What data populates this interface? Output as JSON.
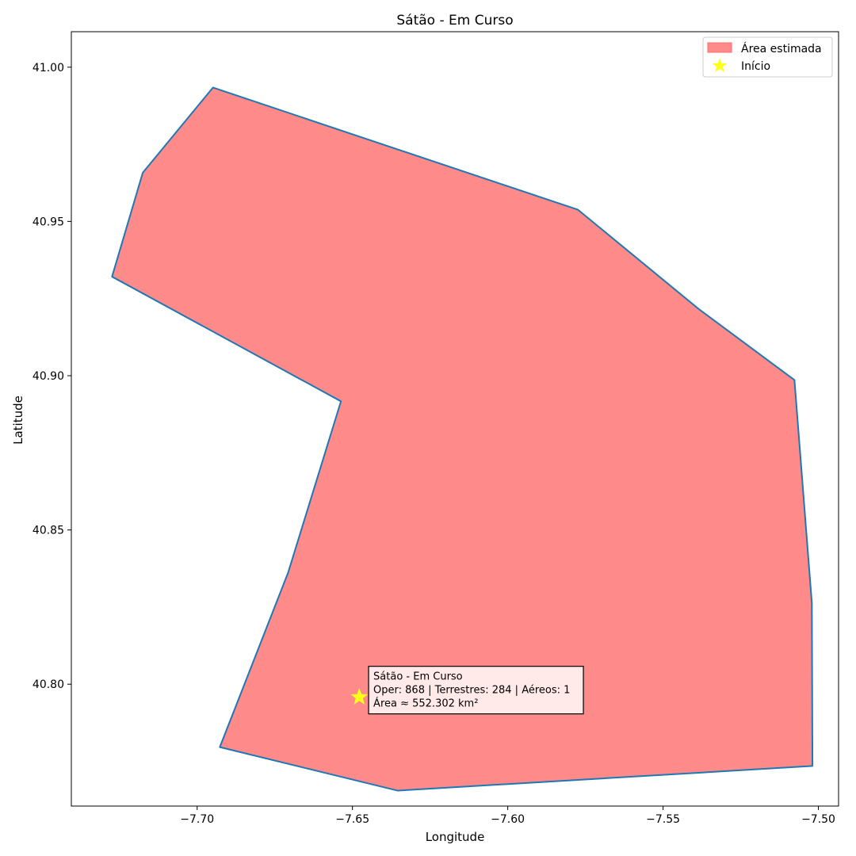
{
  "chart_data": {
    "type": "area",
    "title": "Sátão - Em Curso",
    "xlabel": "Longitude",
    "ylabel": "Latitude",
    "xlim": [
      -7.7405,
      -7.4935
    ],
    "ylim": [
      40.7605,
      41.0115
    ],
    "xticks": [
      -7.7,
      -7.65,
      -7.6,
      -7.55,
      -7.5
    ],
    "xtick_labels": [
      "−7.70",
      "−7.65",
      "−7.60",
      "−7.55",
      "−7.50"
    ],
    "yticks": [
      40.8,
      40.85,
      40.9,
      40.95,
      41.0
    ],
    "ytick_labels": [
      "40.80",
      "40.85",
      "40.90",
      "40.95",
      "41.00"
    ],
    "grid": false,
    "legend_position": "top-right",
    "series": [
      {
        "name": "Área estimada",
        "kind": "polygon",
        "fill_color": "#ff8a8a",
        "edge_color": "#1f77b4",
        "points": [
          [
            -7.6949,
            40.9934
          ],
          [
            -7.5774,
            40.9538
          ],
          [
            -7.5385,
            40.9216
          ],
          [
            -7.5077,
            40.8986
          ],
          [
            -7.5021,
            40.8263
          ],
          [
            -7.5019,
            40.7735
          ],
          [
            -7.6354,
            40.7655
          ],
          [
            -7.6927,
            40.7796
          ],
          [
            -7.6707,
            40.8362
          ],
          [
            -7.6537,
            40.8917
          ],
          [
            -7.7274,
            40.9321
          ],
          [
            -7.7175,
            40.9658
          ]
        ]
      },
      {
        "name": "Início",
        "kind": "marker",
        "marker": "star",
        "color": "#ffff1a",
        "x": -7.6478,
        "y": 40.7958
      }
    ],
    "annotation": {
      "lines": [
        "Sátão - Em Curso",
        "Oper: 868 | Terrestres: 284 | Aéreos: 1",
        "Área ≈ 552.302 km²"
      ],
      "anchor_x": -7.6448,
      "anchor_y": 40.804,
      "box_color": "#ffe9e9"
    }
  }
}
